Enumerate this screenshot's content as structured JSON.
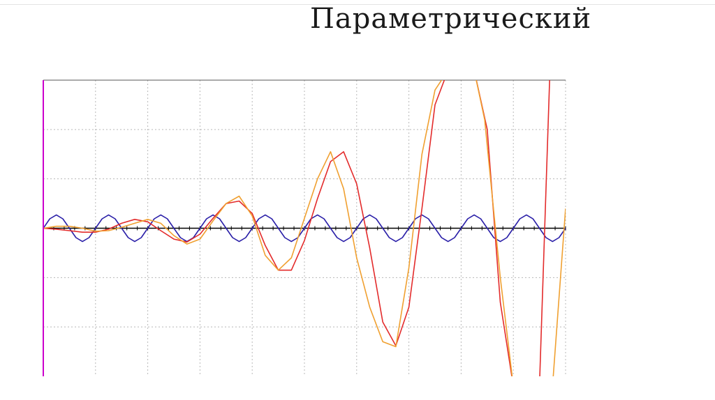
{
  "slide": {
    "title": "Параметрический"
  },
  "colors": {
    "background": "#ffffff",
    "grid": "#b8b8b8",
    "axis": "#000000",
    "left_axis": "#cc00cc",
    "sine": "#2a1fa8",
    "red_series": "#e32b2b",
    "orange_series": "#f0a030"
  },
  "chart_data": {
    "type": "line",
    "title": "",
    "xlabel": "",
    "ylabel": "",
    "xlim": [
      0,
      20
    ],
    "ylim": [
      -3,
      3
    ],
    "grid": true,
    "legend": "none",
    "series": [
      {
        "color": "#2a1fa8",
        "x": [
          0,
          0.25,
          0.5,
          0.75,
          1,
          1.25,
          1.5,
          1.75,
          2,
          2.25,
          2.5,
          2.75,
          3,
          3.25,
          3.5,
          3.75,
          4,
          4.25,
          4.5,
          4.75,
          5,
          5.25,
          5.5,
          5.75,
          6,
          6.25,
          6.5,
          6.75,
          7,
          7.25,
          7.5,
          7.75,
          8,
          8.25,
          8.5,
          8.75,
          9,
          9.25,
          9.5,
          9.75,
          10,
          10.25,
          10.5,
          10.75,
          11,
          11.25,
          11.5,
          11.75,
          12,
          12.25,
          12.5,
          12.75,
          13,
          13.25,
          13.5,
          13.75,
          14,
          14.25,
          14.5,
          14.75,
          15,
          15.25,
          15.5,
          15.75,
          16,
          16.25,
          16.5,
          16.75,
          17,
          17.25,
          17.5,
          17.75,
          18,
          18.25,
          18.5,
          18.75,
          19,
          19.25,
          19.5,
          19.75,
          20
        ],
        "y": [
          0,
          0.19,
          0.27,
          0.19,
          0,
          -0.19,
          -0.27,
          -0.19,
          0,
          0.19,
          0.27,
          0.19,
          0,
          -0.19,
          -0.27,
          -0.19,
          0,
          0.19,
          0.27,
          0.19,
          0,
          -0.19,
          -0.27,
          -0.19,
          0,
          0.19,
          0.27,
          0.19,
          0,
          -0.19,
          -0.27,
          -0.19,
          0,
          0.19,
          0.27,
          0.19,
          0,
          -0.19,
          -0.27,
          -0.19,
          0,
          0.19,
          0.27,
          0.19,
          0,
          -0.19,
          -0.27,
          -0.19,
          0,
          0.19,
          0.27,
          0.19,
          0,
          -0.19,
          -0.27,
          -0.19,
          0,
          0.19,
          0.27,
          0.19,
          0,
          -0.19,
          -0.27,
          -0.19,
          0,
          0.19,
          0.27,
          0.19,
          0,
          -0.19,
          -0.27,
          -0.19,
          0,
          0.19,
          0.27,
          0.19,
          0,
          -0.19,
          -0.27,
          -0.19,
          0
        ]
      },
      {
        "color": "#e32b2b",
        "x": [
          0,
          0.5,
          1,
          1.5,
          2,
          2.5,
          3,
          3.5,
          4,
          4.5,
          5,
          5.5,
          6,
          6.5,
          7,
          7.5,
          8,
          8.5,
          9,
          9.5,
          10,
          10.5,
          11,
          11.5,
          12,
          12.5,
          13,
          13.5,
          14,
          14.5,
          15,
          15.5,
          15.8,
          16.5,
          17,
          17.5,
          18,
          18.5,
          19,
          19.4
        ],
        "y": [
          0,
          -0.02,
          -0.05,
          -0.08,
          -0.08,
          -0.02,
          0.1,
          0.18,
          0.13,
          -0.05,
          -0.22,
          -0.28,
          -0.12,
          0.2,
          0.5,
          0.55,
          0.3,
          -0.35,
          -0.85,
          -0.85,
          -0.25,
          0.6,
          1.35,
          1.55,
          0.9,
          -0.4,
          -1.9,
          -2.38,
          -1.6,
          0.4,
          2.5,
          3.2,
          3.2,
          3.2,
          2.0,
          -1.5,
          -3.2,
          -3.2,
          -3.2,
          3.2
        ]
      },
      {
        "color": "#f0a030",
        "x": [
          0,
          0.5,
          1,
          1.5,
          2,
          2.5,
          3,
          3.5,
          4,
          4.5,
          5,
          5.5,
          6,
          6.5,
          7,
          7.5,
          8,
          8.5,
          9,
          9.5,
          10,
          10.5,
          11,
          11.5,
          12,
          12.5,
          13,
          13.5,
          14,
          14.5,
          15,
          15.5,
          16,
          16.5,
          16.9,
          17.5,
          18,
          18.5,
          19,
          19.5,
          20
        ],
        "y": [
          0,
          0.04,
          0.04,
          0.0,
          -0.06,
          -0.05,
          0.02,
          0.1,
          0.18,
          0.1,
          -0.15,
          -0.32,
          -0.22,
          0.15,
          0.5,
          0.65,
          0.25,
          -0.55,
          -0.85,
          -0.6,
          0.2,
          1.0,
          1.55,
          0.8,
          -0.6,
          -1.6,
          -2.3,
          -2.4,
          -0.8,
          1.5,
          2.8,
          3.2,
          3.2,
          3.2,
          2.2,
          -1.0,
          -3.2,
          -3.2,
          -3.2,
          -3.2,
          0.4
        ]
      }
    ]
  }
}
